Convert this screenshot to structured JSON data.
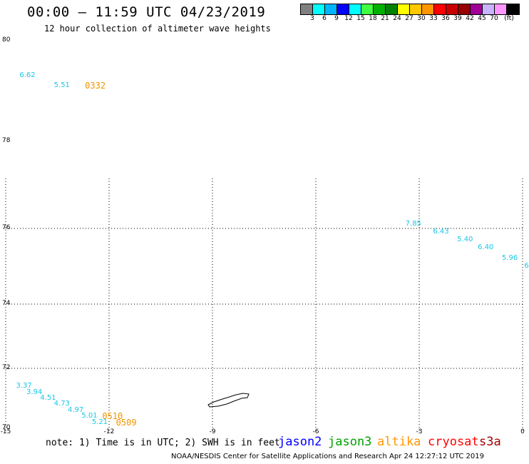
{
  "header": {
    "title": "00:00 – 11:59 UTC 04/23/2019",
    "subtitle": "12 hour collection of altimeter wave heights"
  },
  "colorbar": {
    "colors": [
      "#808080",
      "#00ffff",
      "#00b4ff",
      "#0000ff",
      "#00ffff",
      "#40ff40",
      "#00b000",
      "#008000",
      "#ffff00",
      "#ffc800",
      "#ff9600",
      "#ff0000",
      "#c80000",
      "#960000",
      "#a00096",
      "#c8b4ff",
      "#ff96ff",
      "#000000"
    ],
    "labels": [
      "3",
      "6",
      "9",
      "12",
      "15",
      "18",
      "21",
      "24",
      "27",
      "30",
      "33",
      "36",
      "39",
      "42",
      "45",
      "70",
      "(ft)"
    ]
  },
  "axes": {
    "lat_labels": [
      "80",
      "78",
      "76",
      "74",
      "72",
      "70"
    ],
    "lon_labels": [
      "-15",
      "-12",
      "-9",
      "-6",
      "-3",
      "0"
    ]
  },
  "wave_heights": [
    {
      "label": "6.62",
      "lon": -14.6,
      "lat": 79.3
    },
    {
      "label": "5.51",
      "lon": -13.6,
      "lat": 79.1
    },
    {
      "label": "7.85",
      "lon": -3.4,
      "lat": 76.1
    },
    {
      "label": "6.43",
      "lon": -2.6,
      "lat": 75.9
    },
    {
      "label": "5.40",
      "lon": -1.9,
      "lat": 75.7
    },
    {
      "label": "6.40",
      "lon": -1.3,
      "lat": 75.5
    },
    {
      "label": "5.96",
      "lon": -0.6,
      "lat": 75.2
    },
    {
      "label": "6",
      "lon": 0.05,
      "lat": 75.0
    },
    {
      "label": "3.37",
      "lon": -14.7,
      "lat": 71.4
    },
    {
      "label": "3.94",
      "lon": -14.4,
      "lat": 71.2
    },
    {
      "label": "4.51",
      "lon": -14.0,
      "lat": 71.0
    },
    {
      "label": "4.73",
      "lon": -13.6,
      "lat": 70.8
    },
    {
      "label": "4.97",
      "lon": -13.2,
      "lat": 70.6
    },
    {
      "label": "5.01",
      "lon": -12.8,
      "lat": 70.4
    },
    {
      "label": "5.21",
      "lon": -12.5,
      "lat": 70.2
    }
  ],
  "pass_times": [
    {
      "label": "0332",
      "lon": -12.7,
      "lat": 79.1
    },
    {
      "label": "0510",
      "lon": -12.2,
      "lat": 70.4
    },
    {
      "label": "0509",
      "lon": -11.8,
      "lat": 70.2
    }
  ],
  "note": "note: 1) Time is in UTC; 2) SWH is in feet",
  "satellites": [
    {
      "name": "jason2",
      "color": "#0000ff"
    },
    {
      "name": "jason3",
      "color": "#00a000"
    },
    {
      "name": "altika",
      "color": "#ff9600"
    },
    {
      "name": "cryosat",
      "color": "#ff0000"
    },
    {
      "name": "s3a",
      "color": "#a00000"
    }
  ],
  "footer": "NOAA/NESDIS Center for Satellite Applications and Research   Apr 24 12:27:12 UTC 2019"
}
